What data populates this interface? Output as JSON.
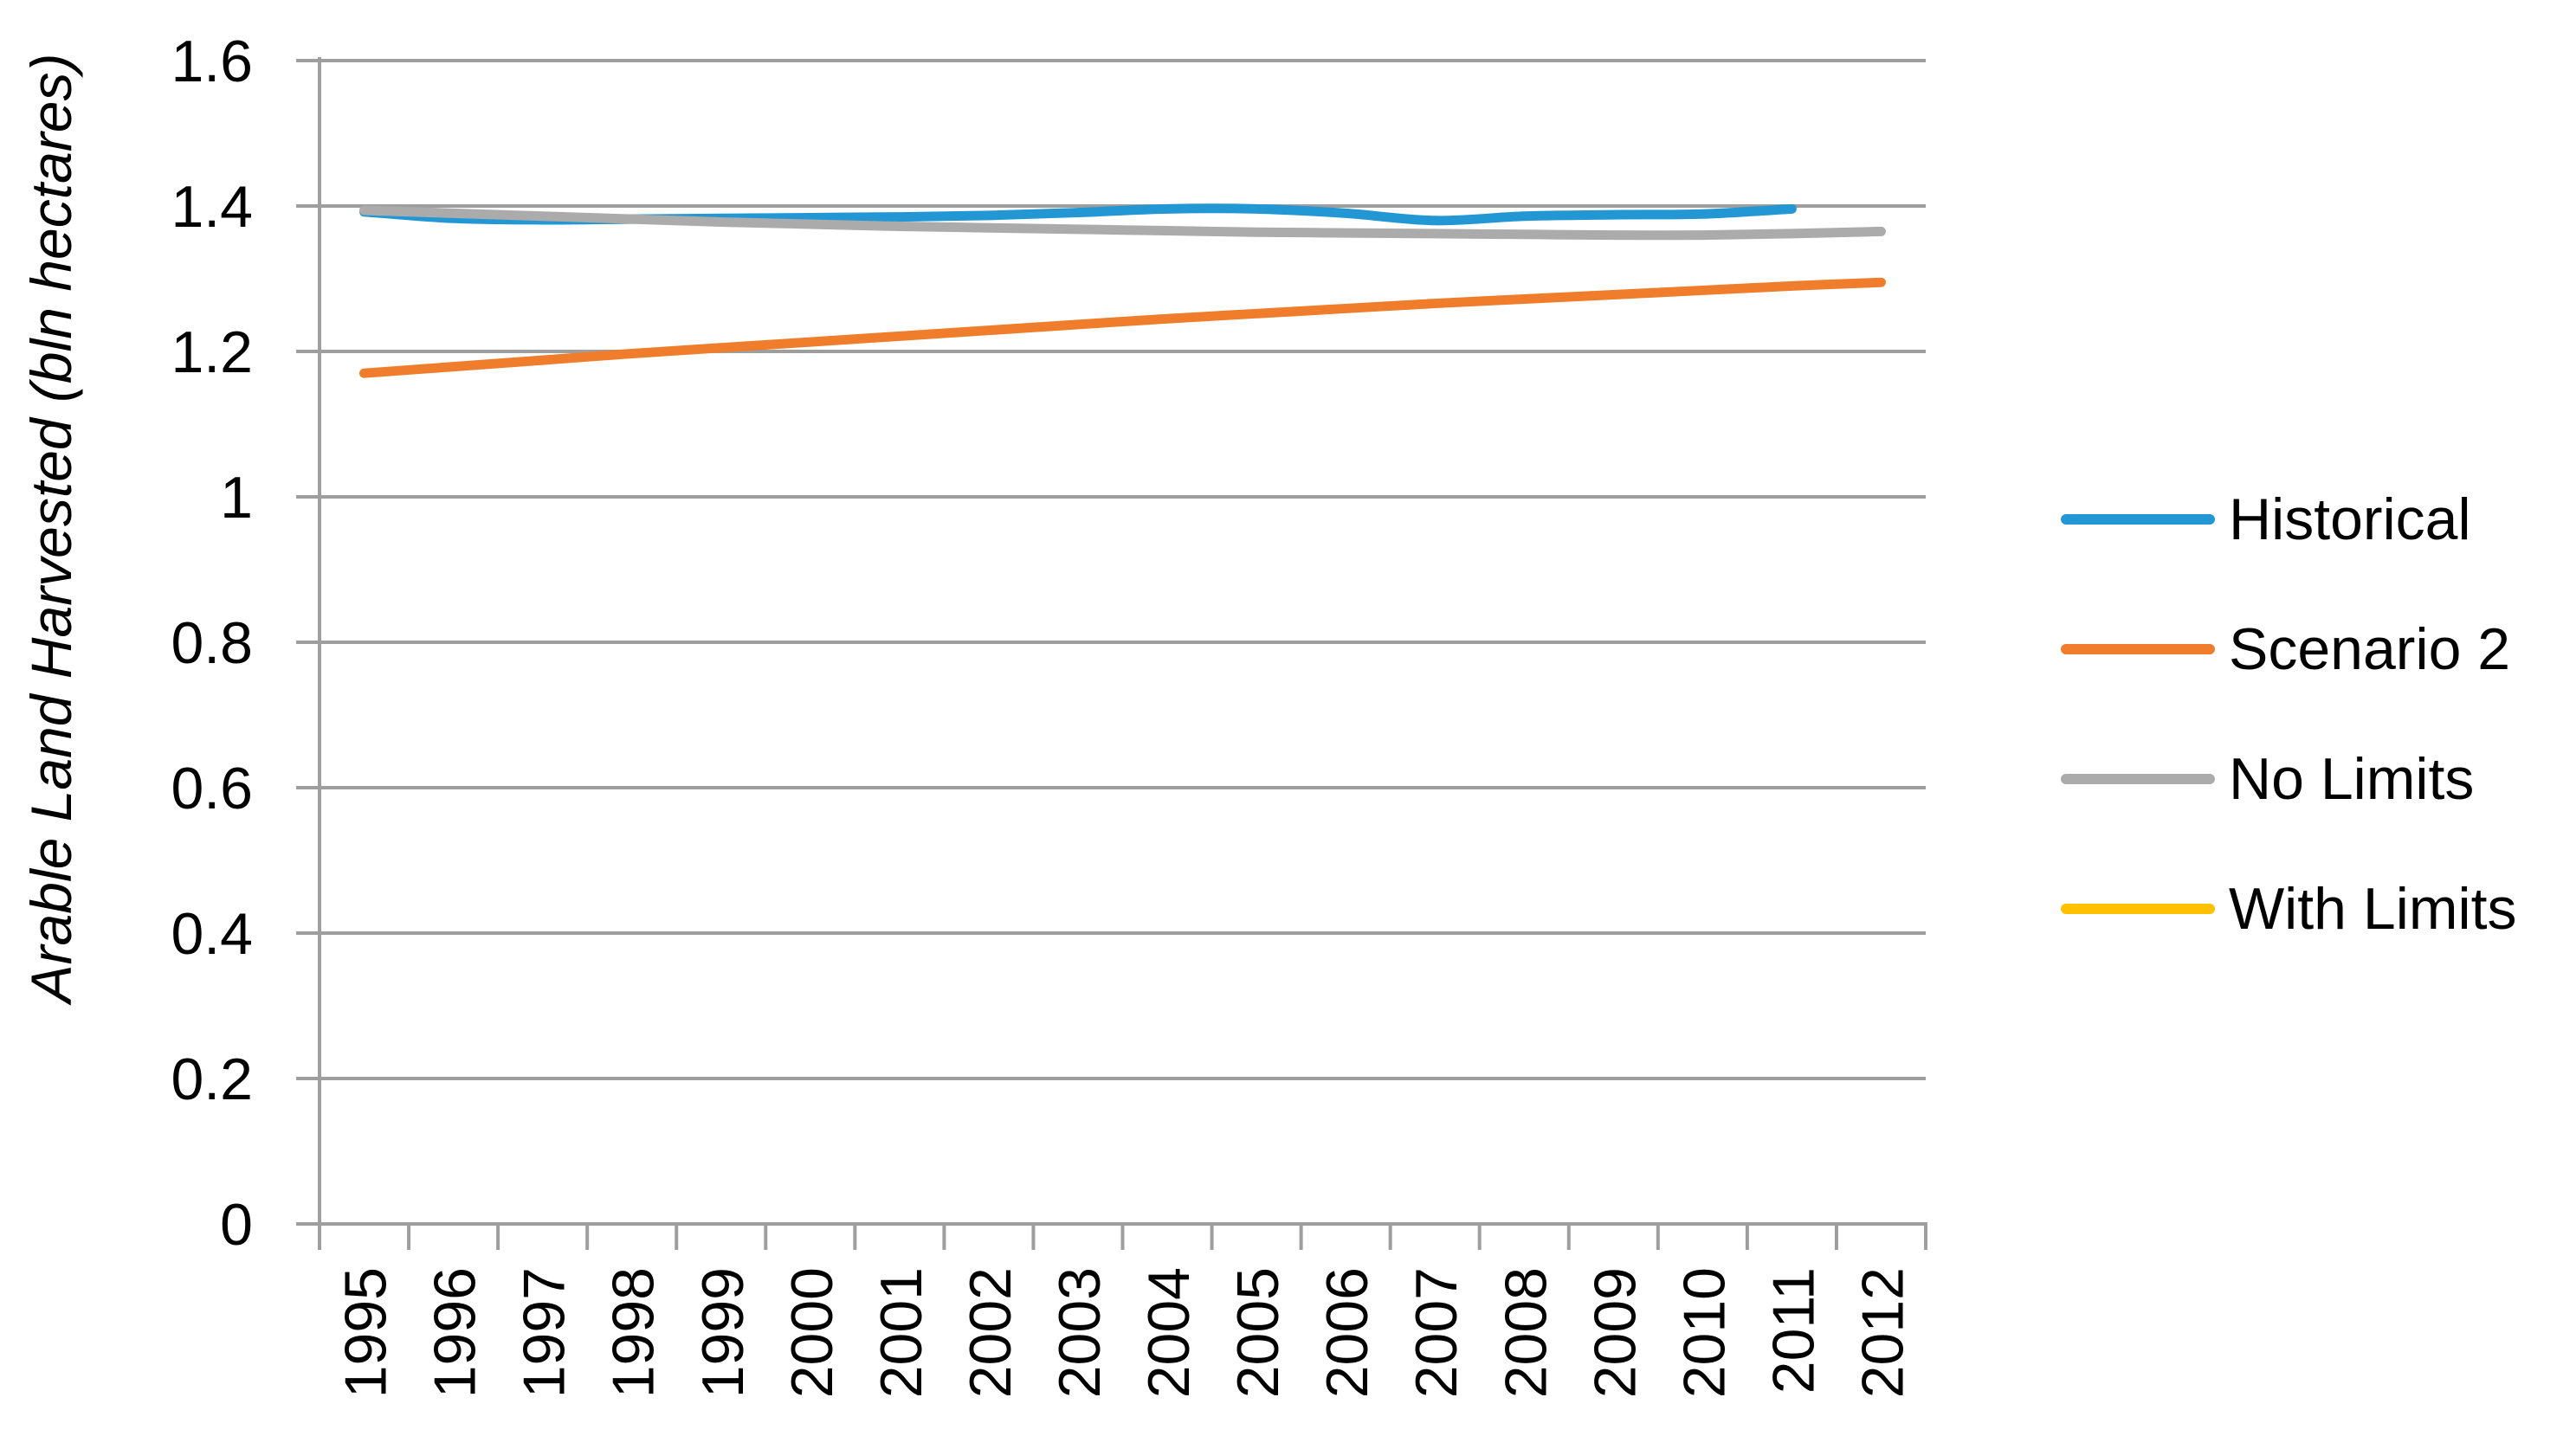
{
  "figure": {
    "background": "#ffffff"
  },
  "y_axis": {
    "title": "Arable Land Harvested (bln hectares)",
    "tick_labels": [
      "0",
      "0.2",
      "0.4",
      "0.6",
      "0.8",
      "1",
      "1.2",
      "1.4",
      "1.6"
    ],
    "tick_values": [
      0,
      0.2,
      0.4,
      0.6,
      0.8,
      1,
      1.2,
      1.4,
      1.6
    ],
    "min": 0,
    "max": 1.6
  },
  "x_axis": {
    "labels": [
      "1995",
      "1996",
      "1997",
      "1998",
      "1999",
      "2000",
      "2001",
      "2002",
      "2003",
      "2004",
      "2005",
      "2006",
      "2007",
      "2008",
      "2009",
      "2010",
      "2011",
      "2012"
    ]
  },
  "legend": [
    {
      "label": "Historical",
      "color": "#2397D4"
    },
    {
      "label": "Scenario 2",
      "color": "#F07D2B"
    },
    {
      "label": "No Limits",
      "color": "#ABABAB"
    },
    {
      "label": "With Limits",
      "color": "#FFC000"
    }
  ],
  "style": {
    "gridline_color": "#9E9E9E",
    "axis_color": "#9E9E9E",
    "text_color": "#000000",
    "line_width": 11
  },
  "chart_data": {
    "type": "line",
    "title": "",
    "xlabel": "",
    "ylabel": "Arable Land Harvested (bln hectares)",
    "ylim": [
      0,
      1.6
    ],
    "grid": true,
    "legend_position": "right",
    "x": [
      1995,
      1996,
      1997,
      1998,
      1999,
      2000,
      2001,
      2002,
      2003,
      2004,
      2005,
      2006,
      2007,
      2008,
      2009,
      2010,
      2011,
      2012
    ],
    "series": [
      {
        "name": "Historical",
        "color": "#2397D4",
        "values": [
          1.392,
          1.383,
          1.381,
          1.382,
          1.383,
          1.384,
          1.385,
          1.387,
          1.391,
          1.396,
          1.396,
          1.39,
          1.38,
          1.386,
          1.388,
          1.389,
          1.396,
          null
        ]
      },
      {
        "name": "Scenario 2",
        "color": "#F07D2B",
        "values": [
          1.17,
          1.179,
          1.188,
          1.197,
          1.205,
          1.213,
          1.221,
          1.229,
          1.237,
          1.245,
          1.252,
          1.259,
          1.266,
          1.272,
          1.278,
          1.284,
          1.29,
          1.295
        ]
      },
      {
        "name": "No Limits",
        "color": "#ABABAB",
        "values": [
          1.394,
          1.39,
          1.386,
          1.382,
          1.378,
          1.375,
          1.372,
          1.37,
          1.368,
          1.366,
          1.364,
          1.363,
          1.362,
          1.361,
          1.36,
          1.36,
          1.362,
          1.365
        ]
      },
      {
        "name": "With Limits",
        "color": "#FFC000",
        "values": [],
        "visible_in_plot": false
      }
    ]
  }
}
